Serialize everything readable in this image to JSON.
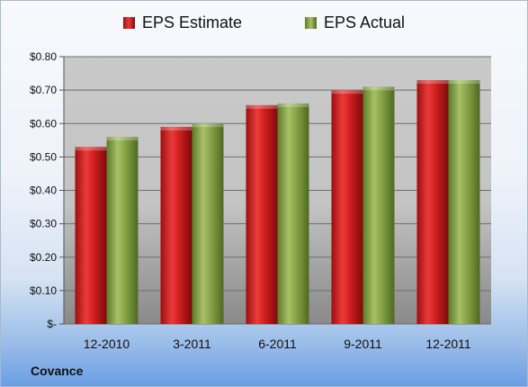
{
  "chart_data": {
    "type": "bar",
    "categories": [
      "12-2010",
      "3-2011",
      "6-2011",
      "9-2011",
      "12-2011"
    ],
    "series": [
      {
        "name": "EPS Estimate",
        "values": [
          0.53,
          0.59,
          0.655,
          0.7,
          0.73
        ],
        "color": "#c21a1a"
      },
      {
        "name": "EPS Actual",
        "values": [
          0.56,
          0.6,
          0.66,
          0.71,
          0.73
        ],
        "color": "#7f9c3c"
      }
    ],
    "ylim": [
      0,
      0.8
    ],
    "yticks": [
      {
        "value": 0.8,
        "label": "$0.80"
      },
      {
        "value": 0.7,
        "label": "$0.70"
      },
      {
        "value": 0.6,
        "label": "$0.60"
      },
      {
        "value": 0.5,
        "label": "$0.50"
      },
      {
        "value": 0.4,
        "label": "$0.40"
      },
      {
        "value": 0.3,
        "label": "$0.30"
      },
      {
        "value": 0.2,
        "label": "$0.20"
      },
      {
        "value": 0.1,
        "label": "$0.10"
      },
      {
        "value": 0.0,
        "label": "$-"
      }
    ],
    "grid": true,
    "legend_position": "top"
  },
  "footer": {
    "company": "Covance"
  }
}
